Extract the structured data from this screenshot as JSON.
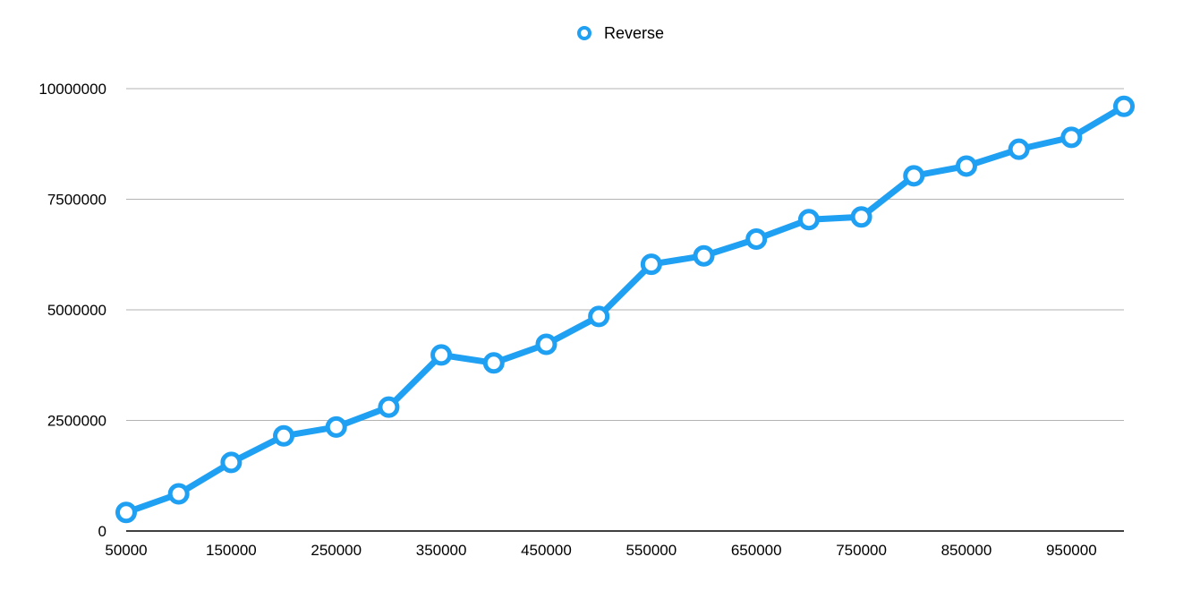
{
  "chart_data": {
    "type": "line",
    "title": "",
    "xlabel": "",
    "ylabel": "",
    "legend": {
      "position": "top-center"
    },
    "grid": {
      "y": true,
      "x": false
    },
    "x": [
      50000,
      100000,
      150000,
      200000,
      250000,
      300000,
      350000,
      400000,
      450000,
      500000,
      550000,
      600000,
      650000,
      700000,
      750000,
      800000,
      850000,
      900000,
      950000,
      1000000
    ],
    "xlim": [
      50000,
      1000000
    ],
    "ylim": [
      0,
      10000000
    ],
    "x_tick_labels": [
      "50000",
      "150000",
      "250000",
      "350000",
      "450000",
      "550000",
      "650000",
      "750000",
      "850000",
      "950000"
    ],
    "y_tick_labels": [
      "0",
      "2500000",
      "5000000",
      "7500000",
      "10000000"
    ],
    "series": [
      {
        "name": "Reverse",
        "color": "#1fa0f2",
        "values": [
          420000,
          840000,
          1550000,
          2150000,
          2350000,
          2800000,
          3980000,
          3800000,
          4220000,
          4850000,
          6030000,
          6220000,
          6600000,
          7040000,
          7100000,
          8030000,
          8250000,
          8630000,
          8900000,
          9600000
        ]
      }
    ]
  }
}
